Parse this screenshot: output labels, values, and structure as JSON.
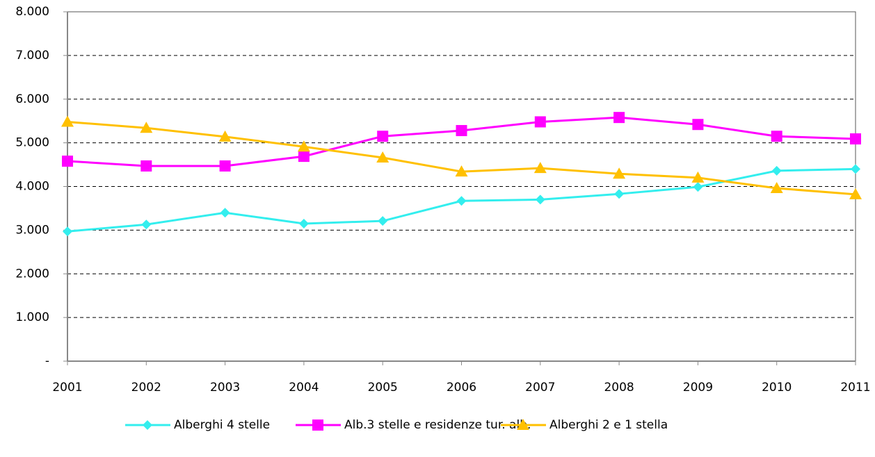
{
  "chart_data": {
    "type": "line",
    "categories": [
      "2001",
      "2002",
      "2003",
      "2004",
      "2005",
      "2006",
      "2007",
      "2008",
      "2009",
      "2010",
      "2011"
    ],
    "series": [
      {
        "name": "Alberghi 4 stelle",
        "color": "#33eeee",
        "marker": "diamond",
        "values": [
          2970,
          3130,
          3400,
          3150,
          3210,
          3670,
          3700,
          3830,
          3990,
          4360,
          4400
        ]
      },
      {
        "name": "Alb.3 stelle e residenze tur. alb.",
        "color": "#ff00ff",
        "marker": "square",
        "values": [
          4580,
          4470,
          4470,
          4690,
          5150,
          5280,
          5480,
          5580,
          5420,
          5150,
          5090
        ]
      },
      {
        "name": "Alberghi 2 e 1 stella",
        "color": "#ffc000",
        "marker": "triangle",
        "values": [
          5480,
          5340,
          5140,
          4910,
          4660,
          4340,
          4420,
          4290,
          4200,
          3960,
          3820
        ]
      }
    ],
    "ylim": [
      0,
      8000
    ],
    "yticks": [
      {
        "value": 0,
        "label": "-"
      },
      {
        "value": 1000,
        "label": "1.000"
      },
      {
        "value": 2000,
        "label": "2.000"
      },
      {
        "value": 3000,
        "label": "3.000"
      },
      {
        "value": 4000,
        "label": "4.000"
      },
      {
        "value": 5000,
        "label": "5.000"
      },
      {
        "value": 6000,
        "label": "6.000"
      },
      {
        "value": 7000,
        "label": "7.000"
      },
      {
        "value": 8000,
        "label": "8.000"
      }
    ],
    "grid": true,
    "legend": "bottom"
  }
}
